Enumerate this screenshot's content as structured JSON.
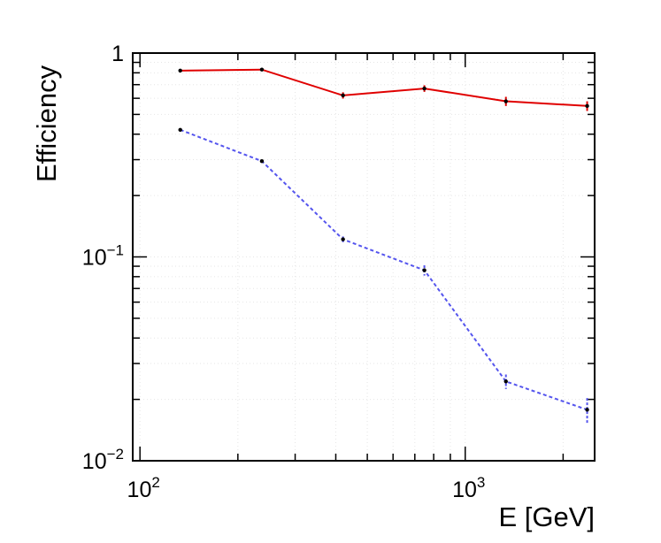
{
  "chart_data": {
    "type": "line",
    "xscale": "log",
    "yscale": "log",
    "xlabel": "E [GeV]",
    "ylabel": "Efficiency",
    "xlim": [
      95,
      2500
    ],
    "ylim": [
      0.01,
      1
    ],
    "grid": true,
    "x_ticks": [
      {
        "value": 100,
        "base": "10",
        "exp": "2"
      },
      {
        "value": 1000,
        "base": "10",
        "exp": "3"
      }
    ],
    "y_ticks": [
      {
        "value": 0.01,
        "base": "10",
        "exp": "−2"
      },
      {
        "value": 0.1,
        "base": "10",
        "exp": "−1"
      },
      {
        "value": 1,
        "base": "1",
        "exp": ""
      }
    ],
    "series": [
      {
        "name": "red series",
        "color": "#e00000",
        "dash": "solid",
        "x": [
          133,
          237,
          421,
          749,
          1334,
          2371
        ],
        "y": [
          0.82,
          0.83,
          0.62,
          0.67,
          0.58,
          0.55
        ],
        "yerr": [
          0.012,
          0.012,
          0.022,
          0.025,
          0.03,
          0.03
        ]
      },
      {
        "name": "blue series",
        "color": "#5555ee",
        "dash": "dashed",
        "x": [
          133,
          237,
          421,
          749,
          1334,
          2371
        ],
        "y": [
          0.42,
          0.295,
          0.122,
          0.086,
          0.0245,
          0.0178
        ],
        "yerr": [
          0.004,
          0.004,
          0.004,
          0.005,
          0.002,
          0.0025
        ]
      }
    ]
  }
}
